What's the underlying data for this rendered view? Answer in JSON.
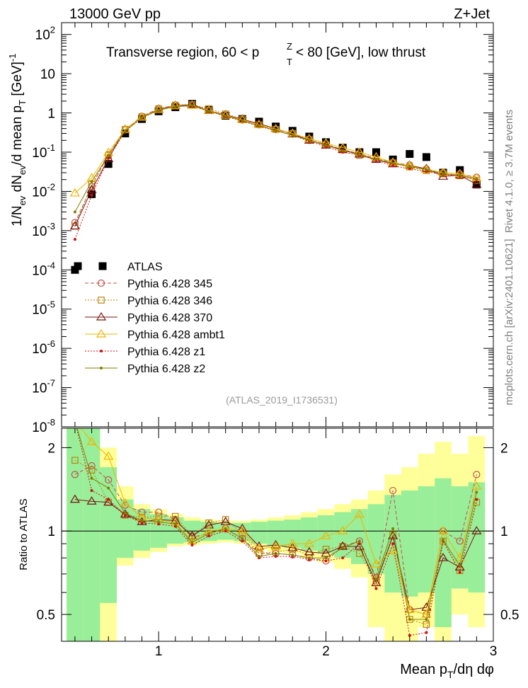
{
  "header": {
    "left": "13000 GeV pp",
    "right": "Z+Jet"
  },
  "side": {
    "rivet": "Rivet 4.1.0, ≥ 3.7M events",
    "mcplots": "mcplots.cern.ch [arXiv:2401.10621]"
  },
  "chart_data": [
    {
      "type": "scatter",
      "panel": "main",
      "title": "Transverse region, 60 < p_T^Z < 80 [GeV], low thrust",
      "title_parts": {
        "pre": "Transverse region, 60 < p",
        "sup": "Z",
        "sub": "T",
        "post": " < 80 [GeV], low thrust"
      },
      "watermark": "(ATLAS_2019_I1736531)",
      "ylabel": "1/N_ev dN_ev/d mean p_T [GeV]^-1",
      "ylabel_parts": {
        "a": "1/N",
        "a_sub": "ev",
        "b": " dN",
        "b_sub": "ev",
        "c": "/d mean p",
        "c_sub": "T",
        "d": " [GeV]",
        "d_sup": "-1"
      },
      "yscale": "log",
      "ylim": [
        1e-08,
        200
      ],
      "xlim": [
        0.42,
        3.0
      ],
      "y_tick_labels": [
        {
          "base": "10",
          "exp": "-8",
          "value": 1e-08
        },
        {
          "base": "10",
          "exp": "-7",
          "value": 1e-07
        },
        {
          "base": "10",
          "exp": "-6",
          "value": 1e-06
        },
        {
          "base": "10",
          "exp": "-5",
          "value": 1e-05
        },
        {
          "base": "10",
          "exp": "-4",
          "value": 0.0001
        },
        {
          "base": "10",
          "exp": "-3",
          "value": 0.001
        },
        {
          "base": "10",
          "exp": "-2",
          "value": 0.01
        },
        {
          "base": "10",
          "exp": "-1",
          "value": 0.1
        },
        {
          "base": "",
          "exp": "",
          "label": "1",
          "value": 1
        },
        {
          "base": "",
          "exp": "",
          "label": "10",
          "value": 10
        },
        {
          "base": "10",
          "exp": "2",
          "value": 100
        }
      ],
      "x": [
        0.5,
        0.6,
        0.7,
        0.8,
        0.9,
        1.0,
        1.1,
        1.2,
        1.3,
        1.4,
        1.5,
        1.6,
        1.7,
        1.8,
        1.9,
        2.0,
        2.1,
        2.2,
        2.3,
        2.4,
        2.5,
        2.6,
        2.7,
        2.8,
        2.9
      ],
      "legend": [
        {
          "label": "ATLAS",
          "color": "#000000",
          "marker": "filled-square",
          "line": "none"
        },
        {
          "label": "Pythia 6.428 345",
          "color": "#c0504d",
          "marker": "open-circle",
          "line": "dashed"
        },
        {
          "label": "Pythia 6.428 346",
          "color": "#b8860b",
          "marker": "open-square",
          "line": "dotted"
        },
        {
          "label": "Pythia 6.428 370",
          "color": "#7b1414",
          "marker": "open-triangle",
          "line": "solid"
        },
        {
          "label": "Pythia 6.428 ambt1",
          "color": "#f0b400",
          "marker": "open-triangle",
          "line": "solid"
        },
        {
          "label": "Pythia 6.428 z1",
          "color": "#d01010",
          "marker": "dot",
          "line": "dotted"
        },
        {
          "label": "Pythia 6.428 z2",
          "color": "#808000",
          "marker": "dot",
          "line": "solid"
        }
      ],
      "series": [
        {
          "name": "ATLAS",
          "values": [
            0.0001,
            0.0085,
            0.05,
            0.3,
            0.7,
            1.1,
            1.4,
            1.7,
            1.2,
            0.85,
            0.7,
            0.6,
            0.45,
            0.35,
            0.25,
            0.18,
            0.13,
            0.1,
            0.1,
            0.065,
            0.09,
            0.075,
            0.03,
            0.035,
            0.015
          ]
        },
        {
          "name": "Pythia 6.428 345",
          "values": [
            0.0016,
            0.0135,
            0.086,
            0.37,
            0.82,
            1.29,
            1.55,
            1.61,
            1.18,
            0.87,
            0.66,
            0.5,
            0.38,
            0.29,
            0.2,
            0.16,
            0.115,
            0.092,
            0.068,
            0.055,
            0.047,
            0.037,
            0.03,
            0.028,
            0.023
          ]
        },
        {
          "name": "Pythia 6.428 346",
          "values": [
            0.0013,
            0.0152,
            0.083,
            0.38,
            0.8,
            1.28,
            1.58,
            1.63,
            1.28,
            0.94,
            0.69,
            0.5,
            0.38,
            0.3,
            0.21,
            0.155,
            0.115,
            0.083,
            0.065,
            0.053,
            0.042,
            0.034,
            0.028,
            0.025,
            0.019
          ]
        },
        {
          "name": "Pythia 6.428 370",
          "values": [
            0.0013,
            0.011,
            0.068,
            0.38,
            0.77,
            1.23,
            1.53,
            1.63,
            1.14,
            0.89,
            0.69,
            0.53,
            0.4,
            0.29,
            0.2,
            0.15,
            0.115,
            0.088,
            0.065,
            0.05,
            0.046,
            0.038,
            0.024,
            0.026,
            0.015
          ]
        },
        {
          "name": "Pythia 6.428 ambt1",
          "values": [
            0.009,
            0.022,
            0.098,
            0.38,
            0.77,
            1.2,
            1.5,
            1.55,
            1.15,
            0.86,
            0.67,
            0.5,
            0.39,
            0.3,
            0.22,
            0.17,
            0.13,
            0.1,
            0.075,
            0.055,
            0.045,
            0.036,
            0.03,
            0.028,
            0.022
          ]
        },
        {
          "name": "Pythia 6.428 z1",
          "values": [
            0.0006,
            0.008,
            0.07,
            0.34,
            0.75,
            1.17,
            1.45,
            1.5,
            1.1,
            0.82,
            0.62,
            0.46,
            0.35,
            0.27,
            0.19,
            0.14,
            0.1,
            0.085,
            0.062,
            0.045,
            0.038,
            0.032,
            0.027,
            0.025,
            0.02
          ]
        },
        {
          "name": "Pythia 6.428 z2",
          "values": [
            0.003,
            0.018,
            0.083,
            0.35,
            0.76,
            1.18,
            1.46,
            1.53,
            1.12,
            0.84,
            0.64,
            0.47,
            0.36,
            0.27,
            0.2,
            0.15,
            0.11,
            0.088,
            0.066,
            0.052,
            0.043,
            0.036,
            0.028,
            0.026,
            0.021
          ]
        }
      ]
    },
    {
      "type": "scatter",
      "panel": "ratio",
      "ylabel": "Ratio to ATLAS",
      "xlabel": "Mean p_T/dη dφ",
      "xlabel_parts": {
        "a": "Mean p",
        "a_sub": "T",
        "b": "/dη dφ"
      },
      "xlim": [
        0.42,
        3.0
      ],
      "ylim": [
        0.4,
        2.35
      ],
      "yscale": "log",
      "x_tick_labels": [
        {
          "label": "1",
          "value": 1
        },
        {
          "label": "2",
          "value": 2
        },
        {
          "label": "3",
          "value": 3
        }
      ],
      "y_tick_labels": [
        {
          "label": "0.5",
          "value": 0.5
        },
        {
          "label": "1",
          "value": 1
        },
        {
          "label": "2",
          "value": 2
        }
      ],
      "reference_line": 1,
      "band_edges": [
        0.45,
        0.55,
        0.65,
        0.75,
        0.85,
        0.95,
        1.05,
        1.15,
        1.25,
        1.35,
        1.45,
        1.55,
        1.65,
        1.75,
        1.85,
        1.95,
        2.05,
        2.15,
        2.25,
        2.35,
        2.45,
        2.55,
        2.65,
        2.75,
        2.85,
        2.95
      ],
      "band_green": {
        "lower": [
          0.3,
          0.3,
          0.55,
          0.8,
          0.85,
          0.87,
          0.9,
          0.91,
          0.92,
          0.93,
          0.92,
          0.9,
          0.88,
          0.87,
          0.85,
          0.83,
          0.8,
          0.76,
          0.7,
          0.6,
          0.58,
          0.6,
          0.45,
          0.62,
          0.6
        ],
        "upper": [
          2.4,
          2.4,
          1.7,
          1.3,
          1.2,
          1.15,
          1.12,
          1.09,
          1.08,
          1.07,
          1.07,
          1.08,
          1.09,
          1.1,
          1.12,
          1.14,
          1.17,
          1.2,
          1.25,
          1.35,
          1.4,
          1.45,
          1.55,
          1.45,
          1.5
        ]
      },
      "band_yellow": {
        "lower": [
          0.3,
          0.3,
          0.3,
          0.75,
          0.8,
          0.84,
          0.88,
          0.89,
          0.9,
          0.91,
          0.9,
          0.86,
          0.84,
          0.83,
          0.8,
          0.77,
          0.73,
          0.68,
          0.45,
          0.3,
          0.4,
          0.45,
          0.35,
          0.5,
          0.45
        ],
        "upper": [
          2.4,
          2.4,
          2.0,
          1.45,
          1.25,
          1.2,
          1.15,
          1.12,
          1.1,
          1.09,
          1.09,
          1.1,
          1.12,
          1.14,
          1.17,
          1.2,
          1.25,
          1.3,
          1.4,
          1.6,
          1.7,
          1.9,
          2.1,
          1.9,
          2.2
        ]
      },
      "series": [
        {
          "name": "Pythia 6.428 345",
          "values": [
            1.6,
            1.72,
            1.53,
            1.24,
            1.17,
            1.17,
            1.1,
            0.95,
            0.98,
            1.02,
            0.94,
            0.83,
            0.83,
            0.82,
            0.8,
            0.78,
            0.88,
            0.92,
            0.68,
            1.4,
            0.52,
            0.5,
            1.0,
            0.92,
            1.6
          ]
        },
        {
          "name": "Pythia 6.428 346",
          "values": [
            1.8,
            1.66,
            1.27,
            1.14,
            1.12,
            1.13,
            1.13,
            0.96,
            1.07,
            1.1,
            0.98,
            0.83,
            0.84,
            0.86,
            0.82,
            0.86,
            0.88,
            0.83,
            0.66,
            0.97,
            0.48,
            0.46,
            0.92,
            0.72,
            1.27
          ]
        },
        {
          "name": "Pythia 6.428 370",
          "values": [
            1.3,
            1.28,
            1.27,
            1.15,
            1.08,
            1.1,
            1.09,
            0.96,
            1.05,
            1.08,
            1.02,
            0.88,
            0.89,
            0.87,
            0.84,
            0.83,
            0.88,
            0.88,
            0.65,
            0.96,
            0.52,
            0.53,
            0.8,
            0.74,
            1.0
          ]
        },
        {
          "name": "Pythia 6.428 ambt1",
          "values": [
            2.5,
            2.1,
            1.86,
            1.26,
            1.12,
            1.1,
            1.07,
            0.92,
            1.0,
            1.02,
            1.0,
            0.86,
            0.88,
            0.9,
            0.9,
            0.96,
            1.0,
            1.15,
            0.76,
            0.85,
            0.52,
            0.5,
            1.0,
            0.8,
            1.45
          ]
        },
        {
          "name": "Pythia 6.428 z1",
          "values": [
            2.5,
            1.4,
            1.3,
            1.14,
            1.07,
            1.06,
            1.04,
            0.89,
            0.96,
            1.0,
            0.92,
            0.8,
            0.81,
            0.81,
            0.79,
            0.78,
            0.8,
            0.9,
            0.62,
            0.9,
            0.42,
            0.43,
            0.92,
            0.71,
            1.3
          ]
        },
        {
          "name": "Pythia 6.428 z2",
          "values": [
            2.5,
            1.55,
            1.43,
            1.16,
            1.09,
            1.08,
            1.06,
            0.91,
            0.98,
            1.02,
            0.94,
            0.81,
            0.83,
            0.82,
            0.8,
            0.8,
            0.87,
            0.92,
            0.67,
            1.02,
            0.48,
            0.48,
            0.93,
            0.75,
            1.38
          ]
        }
      ]
    }
  ]
}
